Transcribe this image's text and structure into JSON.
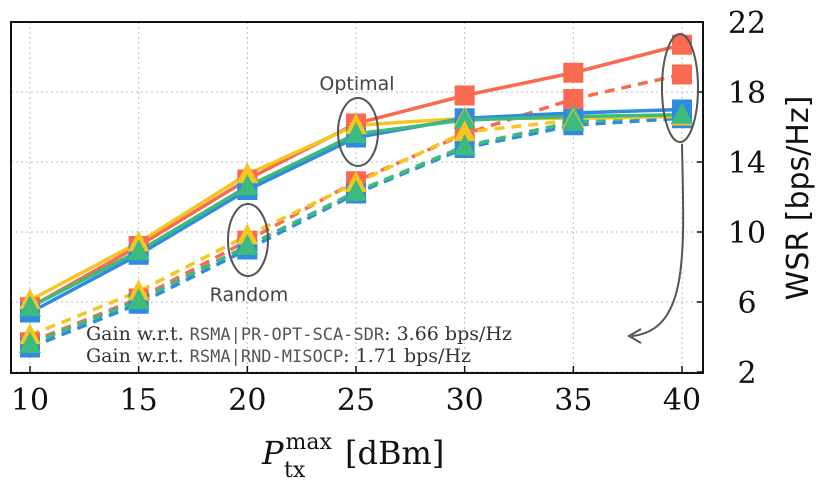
{
  "chart_data": {
    "type": "line",
    "x": [
      10,
      15,
      20,
      25,
      30,
      35,
      40
    ],
    "xlim": [
      10,
      40
    ],
    "ylim": [
      2,
      22
    ],
    "xticks": [
      10,
      15,
      20,
      25,
      30,
      35,
      40
    ],
    "yticks": [
      2,
      6,
      10,
      14,
      18,
      22
    ],
    "grid": true,
    "xlabel": {
      "main": "P",
      "sup": "max",
      "sub": "tx",
      "unit": "[dBm]"
    },
    "ylabel": "WSR [bps/Hz]",
    "series": [
      {
        "color": "#f96a50",
        "dash": false,
        "marker": "square",
        "values": [
          5.7,
          9.2,
          13.0,
          16.2,
          17.8,
          19.1,
          20.7
        ]
      },
      {
        "color": "#f5c520",
        "dash": false,
        "marker": "triangle",
        "values": [
          6.1,
          9.4,
          13.3,
          16.1,
          16.5,
          16.5,
          16.6
        ]
      },
      {
        "color": "#2f8ae0",
        "dash": false,
        "marker": "square",
        "values": [
          5.4,
          8.7,
          12.4,
          15.4,
          16.5,
          16.8,
          17.0
        ]
      },
      {
        "color": "#3dbb7e",
        "dash": false,
        "marker": "triangle",
        "values": [
          5.7,
          8.9,
          12.6,
          15.6,
          16.4,
          16.6,
          16.7
        ]
      },
      {
        "color": "#f96a50",
        "dash": true,
        "marker": "square",
        "values": [
          3.7,
          6.2,
          9.5,
          12.9,
          15.6,
          17.6,
          19.0
        ]
      },
      {
        "color": "#f5c520",
        "dash": true,
        "marker": "triangle",
        "values": [
          4.1,
          6.6,
          9.8,
          12.8,
          15.7,
          16.4,
          16.6
        ]
      },
      {
        "color": "#2f8ae0",
        "dash": true,
        "marker": "square",
        "values": [
          3.4,
          5.9,
          9.0,
          12.2,
          14.8,
          16.1,
          16.5
        ]
      },
      {
        "color": "#3dbb7e",
        "dash": true,
        "marker": "triangle",
        "values": [
          3.6,
          6.1,
          9.2,
          12.3,
          14.9,
          16.3,
          16.7
        ]
      }
    ],
    "annotations": {
      "optimal": "Optimal",
      "random": "Random",
      "gain1_prefix": "Gain w.r.t. ",
      "gain1_code": "RSMA|PR-OPT-SCA-SDR",
      "gain1_suffix": ": 3.66 bps/Hz",
      "gain2_prefix": "Gain w.r.t. ",
      "gain2_code": "RSMA|RND-MISOCP",
      "gain2_suffix": ": 1.71 bps/Hz"
    }
  }
}
